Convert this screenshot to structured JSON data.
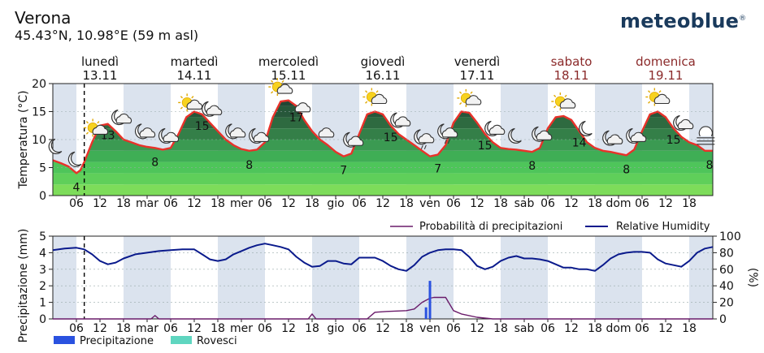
{
  "header": {
    "location": "Verona",
    "coords": "45.43°N, 10.98°E (59 m asl)",
    "brand": "meteoblue",
    "brand_mark": "®"
  },
  "days": [
    {
      "name": "lunedì",
      "date": "13.11",
      "weekend": false
    },
    {
      "name": "martedì",
      "date": "14.11",
      "weekend": false
    },
    {
      "name": "mercoledì",
      "date": "15.11",
      "weekend": false
    },
    {
      "name": "giovedì",
      "date": "16.11",
      "weekend": false
    },
    {
      "name": "venerdì",
      "date": "17.11",
      "weekend": false
    },
    {
      "name": "sabato",
      "date": "18.11",
      "weekend": true
    },
    {
      "name": "domenica",
      "date": "19.11",
      "weekend": true
    }
  ],
  "x_tick_labels": [
    "06",
    "12",
    "18",
    "mar",
    "06",
    "12",
    "18",
    "mer",
    "06",
    "12",
    "18",
    "gio",
    "06",
    "12",
    "18",
    "ven",
    "06",
    "12",
    "18",
    "sab",
    "06",
    "12",
    "18",
    "dom",
    "06",
    "12",
    "18"
  ],
  "colors": {
    "night_band": "#dbe3ee",
    "temp_line": "#e8322a",
    "humidity": "#0a1a8c",
    "probability": "#6a1b6a",
    "precipitation": "#2a52e0",
    "showers": "#5fd6c0",
    "weekend_text": "#8b2a2a"
  },
  "chart_data": [
    {
      "type": "area",
      "title": "",
      "ylabel": "Temperatura (°C)",
      "ylim": [
        0,
        20
      ],
      "yticks": [
        0,
        5,
        10,
        15,
        20
      ],
      "x_unit": "hours from 13.11 00:00",
      "x_range": [
        0,
        168
      ],
      "series": [
        {
          "name": "Temperatura",
          "x": [
            0,
            2,
            4,
            6,
            7,
            8,
            10,
            12,
            14,
            16,
            18,
            20,
            22,
            24,
            26,
            28,
            30,
            32,
            34,
            36,
            38,
            40,
            42,
            44,
            46,
            48,
            50,
            52,
            54,
            56,
            58,
            60,
            62,
            64,
            66,
            68,
            70,
            72,
            74,
            76,
            78,
            80,
            82,
            84,
            86,
            88,
            90,
            92,
            94,
            96,
            98,
            100,
            102,
            104,
            106,
            108,
            110,
            112,
            114,
            116,
            118,
            120,
            122,
            124,
            126,
            128,
            130,
            132,
            134,
            136,
            138,
            140,
            142,
            144,
            146,
            148,
            150,
            152,
            154,
            156,
            158,
            160,
            162,
            164,
            166,
            168
          ],
          "values": [
            6.3,
            5.8,
            5.2,
            4.0,
            4.5,
            6.0,
            9.5,
            12.5,
            12.8,
            11.5,
            10.0,
            9.5,
            9.0,
            8.7,
            8.5,
            8.2,
            8.5,
            11.0,
            14.0,
            15.0,
            14.5,
            13.0,
            11.5,
            10.0,
            9.0,
            8.3,
            8.0,
            8.2,
            9.5,
            14.0,
            16.8,
            17.0,
            16.0,
            13.5,
            11.5,
            10.0,
            9.0,
            7.8,
            7.0,
            7.5,
            11.0,
            14.5,
            15.0,
            14.5,
            12.5,
            11.0,
            10.0,
            9.0,
            8.0,
            7.0,
            7.3,
            9.0,
            13.0,
            15.0,
            14.8,
            13.0,
            11.0,
            9.5,
            8.5,
            8.3,
            8.2,
            8.0,
            7.8,
            8.5,
            12.0,
            14.0,
            14.2,
            13.5,
            11.5,
            9.5,
            8.5,
            8.0,
            7.8,
            7.5,
            7.2,
            8.2,
            11.5,
            14.5,
            15.0,
            14.0,
            12.0,
            10.5,
            9.5,
            9.0,
            8.0,
            8.0
          ]
        }
      ],
      "labels": [
        {
          "x": 6,
          "text": "4"
        },
        {
          "x": 14,
          "text": "13"
        },
        {
          "x": 26,
          "text": "8"
        },
        {
          "x": 38,
          "text": "15"
        },
        {
          "x": 50,
          "text": "8"
        },
        {
          "x": 62,
          "text": "17"
        },
        {
          "x": 74,
          "text": "7"
        },
        {
          "x": 86,
          "text": "15"
        },
        {
          "x": 98,
          "text": "7"
        },
        {
          "x": 110,
          "text": "15"
        },
        {
          "x": 122,
          "text": "8"
        },
        {
          "x": 134,
          "text": "14"
        },
        {
          "x": 146,
          "text": "8"
        },
        {
          "x": 158,
          "text": "15"
        },
        {
          "x": 168,
          "text": "8"
        }
      ],
      "now_hour": 8,
      "icons": [
        {
          "x": 1,
          "kind": "moon"
        },
        {
          "x": 6,
          "kind": "moon"
        },
        {
          "x": 11,
          "kind": "sun-cloud"
        },
        {
          "x": 17,
          "kind": "moon-cloud"
        },
        {
          "x": 23,
          "kind": "moon-cloud"
        },
        {
          "x": 29,
          "kind": "moon-cloud"
        },
        {
          "x": 35,
          "kind": "sun-cloud"
        },
        {
          "x": 40,
          "kind": "moon-cloud"
        },
        {
          "x": 46,
          "kind": "moon-cloud"
        },
        {
          "x": 52,
          "kind": "moon-cloud"
        },
        {
          "x": 58,
          "kind": "sun-cloud"
        },
        {
          "x": 64,
          "kind": "cloud"
        },
        {
          "x": 70,
          "kind": "cloud"
        },
        {
          "x": 76,
          "kind": "moon-cloud"
        },
        {
          "x": 82,
          "kind": "sun-cloud"
        },
        {
          "x": 88,
          "kind": "moon-cloud"
        },
        {
          "x": 94,
          "kind": "moon-rain"
        },
        {
          "x": 100,
          "kind": "moon-rain"
        },
        {
          "x": 106,
          "kind": "sun-cloud"
        },
        {
          "x": 112,
          "kind": "moon-cloud"
        },
        {
          "x": 118,
          "kind": "moon"
        },
        {
          "x": 124,
          "kind": "moon-cloud"
        },
        {
          "x": 130,
          "kind": "sun-cloud"
        },
        {
          "x": 136,
          "kind": "moon"
        },
        {
          "x": 142,
          "kind": "moon-cloud"
        },
        {
          "x": 148,
          "kind": "moon-cloud"
        },
        {
          "x": 154,
          "kind": "sun-cloud"
        },
        {
          "x": 160,
          "kind": "moon-cloud"
        },
        {
          "x": 166,
          "kind": "fog"
        }
      ]
    },
    {
      "type": "line",
      "title": "",
      "ylabel": "Precipitazione (mm)",
      "ylabel_right": "(%)",
      "ylim": [
        0,
        5
      ],
      "ylim_right": [
        0,
        100
      ],
      "yticks": [
        0,
        1,
        2,
        3,
        4,
        5
      ],
      "yticks_right": [
        0,
        20,
        40,
        60,
        80,
        100
      ],
      "x_unit": "hours from 13.11 00:00",
      "x_range": [
        0,
        168
      ],
      "series": [
        {
          "name": "Relative Humidity",
          "axis": "right",
          "x": [
            0,
            3,
            6,
            8,
            10,
            12,
            14,
            16,
            18,
            21,
            24,
            27,
            30,
            33,
            36,
            38,
            40,
            42,
            44,
            46,
            48,
            50,
            52,
            54,
            56,
            58,
            60,
            62,
            64,
            66,
            68,
            70,
            72,
            74,
            76,
            78,
            80,
            82,
            84,
            86,
            88,
            90,
            92,
            94,
            96,
            98,
            100,
            102,
            104,
            106,
            108,
            110,
            112,
            114,
            116,
            118,
            120,
            122,
            124,
            126,
            128,
            130,
            132,
            134,
            136,
            138,
            140,
            142,
            144,
            146,
            148,
            150,
            152,
            154,
            156,
            158,
            160,
            162,
            164,
            166,
            168
          ],
          "values": [
            83,
            85,
            86,
            84,
            78,
            70,
            66,
            68,
            73,
            78,
            80,
            82,
            83,
            84,
            84,
            78,
            72,
            70,
            72,
            78,
            82,
            86,
            89,
            91,
            89,
            87,
            84,
            75,
            68,
            63,
            64,
            70,
            70,
            67,
            66,
            74,
            74,
            74,
            70,
            64,
            60,
            58,
            65,
            75,
            80,
            83,
            84,
            84,
            83,
            75,
            64,
            60,
            63,
            70,
            74,
            76,
            73,
            73,
            72,
            70,
            66,
            62,
            62,
            60,
            60,
            58,
            65,
            73,
            78,
            80,
            81,
            81,
            80,
            72,
            67,
            65,
            63,
            70,
            80,
            85,
            87
          ]
        },
        {
          "name": "Probabilità di precipitazioni",
          "axis": "right",
          "x": [
            0,
            10,
            20,
            25,
            26,
            27,
            30,
            40,
            50,
            60,
            65,
            66,
            67,
            70,
            80,
            82,
            85,
            90,
            92,
            94,
            96,
            97,
            100,
            102,
            104,
            108,
            112,
            120,
            140,
            168
          ],
          "values": [
            0,
            0,
            0,
            0,
            4,
            0,
            0,
            0,
            0,
            0,
            0,
            6,
            0,
            0,
            0,
            8,
            9,
            10,
            12,
            20,
            25,
            26,
            26,
            10,
            6,
            2,
            0,
            0,
            0,
            0
          ]
        },
        {
          "name": "Precipitazione",
          "kind": "bar",
          "x": [
            95,
            96
          ],
          "values": [
            0.7,
            2.3
          ]
        },
        {
          "name": "Rovesci",
          "kind": "bar",
          "x": [],
          "values": []
        }
      ],
      "legend": [
        "Probabilità di precipitazioni",
        "Relative Humidity",
        "Precipitazione",
        "Rovesci"
      ],
      "now_hour": 8
    }
  ]
}
